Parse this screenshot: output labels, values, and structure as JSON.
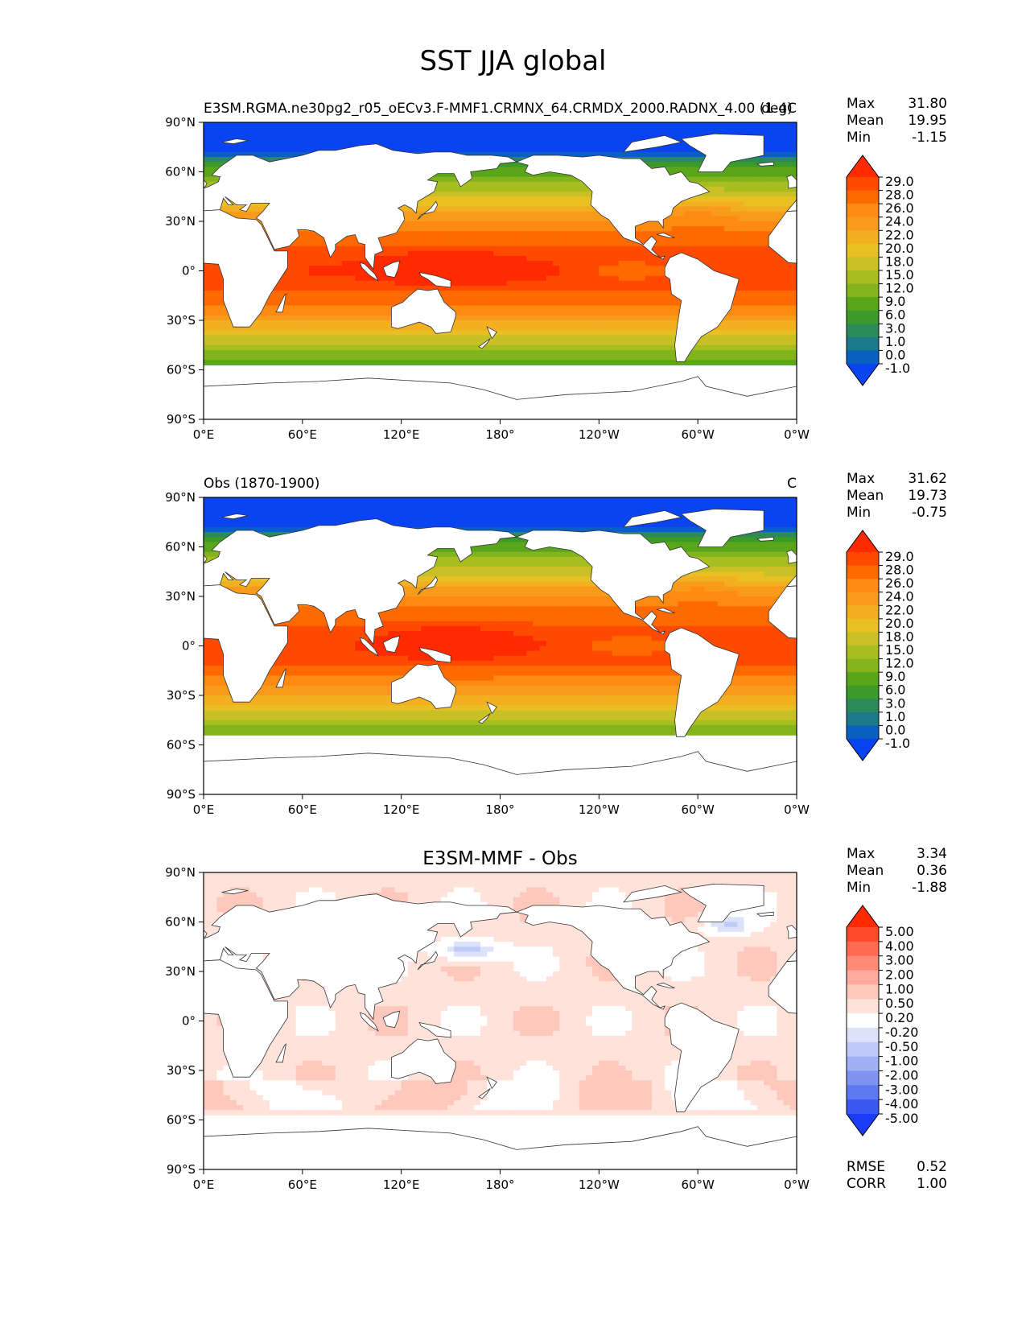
{
  "figure": {
    "title": "SST JJA global"
  },
  "chart_data": [
    {
      "type": "heatmap",
      "panel_id": "test",
      "left_title": "E3SM.RGMA.ne30pg2_r05_oECv3.F-MMF1.CRMNX_64.CRMDX_2000.RADNX_4.00 (1-4)",
      "center_title": "",
      "units": "degC",
      "stats": [
        {
          "label": "Max",
          "value": "31.80"
        },
        {
          "label": "Mean",
          "value": "19.95"
        },
        {
          "label": "Min",
          "value": "-1.15"
        }
      ],
      "colorbar_ticks": [
        "29.0",
        "28.0",
        "26.0",
        "24.0",
        "22.0",
        "20.0",
        "18.0",
        "15.0",
        "12.0",
        "9.0",
        "6.0",
        "3.0",
        "1.0",
        "0.0",
        "-1.0"
      ],
      "colorbar_colors": [
        "#ff2a00",
        "#ff4a00",
        "#ff6a00",
        "#ff8a10",
        "#f89a1a",
        "#f2b020",
        "#e8c024",
        "#c8c024",
        "#a8be20",
        "#84b41c",
        "#5aa61a",
        "#3c9a28",
        "#2c8a5a",
        "#1a7a8a",
        "#0a60c0",
        "#0a44f0"
      ],
      "stats_extra": [],
      "xlabels": [
        "0°E",
        "60°E",
        "120°E",
        "180°",
        "120°W",
        "60°W",
        "0°W"
      ],
      "ylabels": [
        "90°N",
        "60°N",
        "30°N",
        "0°",
        "30°S",
        "60°S",
        "90°S"
      ],
      "ylim": [
        -90,
        90
      ],
      "xlim": [
        0,
        360
      ]
    },
    {
      "type": "heatmap",
      "panel_id": "ref",
      "left_title": "Obs (1870-1900)",
      "center_title": "",
      "units": "C",
      "stats": [
        {
          "label": "Max",
          "value": "31.62"
        },
        {
          "label": "Mean",
          "value": "19.73"
        },
        {
          "label": "Min",
          "value": "-0.75"
        }
      ],
      "colorbar_ticks": [
        "29.0",
        "28.0",
        "26.0",
        "24.0",
        "22.0",
        "20.0",
        "18.0",
        "15.0",
        "12.0",
        "9.0",
        "6.0",
        "3.0",
        "1.0",
        "0.0",
        "-1.0"
      ],
      "colorbar_colors": [
        "#ff2a00",
        "#ff4a00",
        "#ff6a00",
        "#ff8a10",
        "#f89a1a",
        "#f2b020",
        "#e8c024",
        "#c8c024",
        "#a8be20",
        "#84b41c",
        "#5aa61a",
        "#3c9a28",
        "#2c8a5a",
        "#1a7a8a",
        "#0a60c0",
        "#0a44f0"
      ],
      "stats_extra": [],
      "xlabels": [
        "0°E",
        "60°E",
        "120°E",
        "180°",
        "120°W",
        "60°W",
        "0°W"
      ],
      "ylabels": [
        "90°N",
        "60°N",
        "30°N",
        "0°",
        "30°S",
        "60°S",
        "90°S"
      ],
      "ylim": [
        -90,
        90
      ],
      "xlim": [
        0,
        360
      ]
    },
    {
      "type": "heatmap",
      "panel_id": "diff",
      "left_title": "",
      "center_title": "E3SM-MMF - Obs",
      "units": "",
      "stats": [
        {
          "label": "Max",
          "value": "3.34"
        },
        {
          "label": "Mean",
          "value": "0.36"
        },
        {
          "label": "Min",
          "value": "-1.88"
        }
      ],
      "colorbar_ticks": [
        "5.00",
        "4.00",
        "3.00",
        "2.00",
        "1.00",
        "0.50",
        "0.20",
        "-0.20",
        "-0.50",
        "-1.00",
        "-2.00",
        "-3.00",
        "-4.00",
        "-5.00"
      ],
      "colorbar_colors": [
        "#ff2a00",
        "#ff4a2a",
        "#ff6a50",
        "#ff8a78",
        "#ffaa9c",
        "#ffc8bc",
        "#ffe2da",
        "#ffffff",
        "#dde2fb",
        "#c0caf8",
        "#a0b0f4",
        "#7f94f2",
        "#5e78f2",
        "#3a58f4",
        "#1a3cf6"
      ],
      "stats_extra": [
        {
          "label": "RMSE",
          "value": "0.52"
        },
        {
          "label": "CORR",
          "value": "1.00"
        }
      ],
      "xlabels": [
        "0°E",
        "60°E",
        "120°E",
        "180°",
        "120°W",
        "60°W",
        "0°W"
      ],
      "ylabels": [
        "90°N",
        "60°N",
        "30°N",
        "0°",
        "30°S",
        "60°S",
        "90°S"
      ],
      "ylim": [
        -90,
        90
      ],
      "xlim": [
        0,
        360
      ]
    }
  ]
}
